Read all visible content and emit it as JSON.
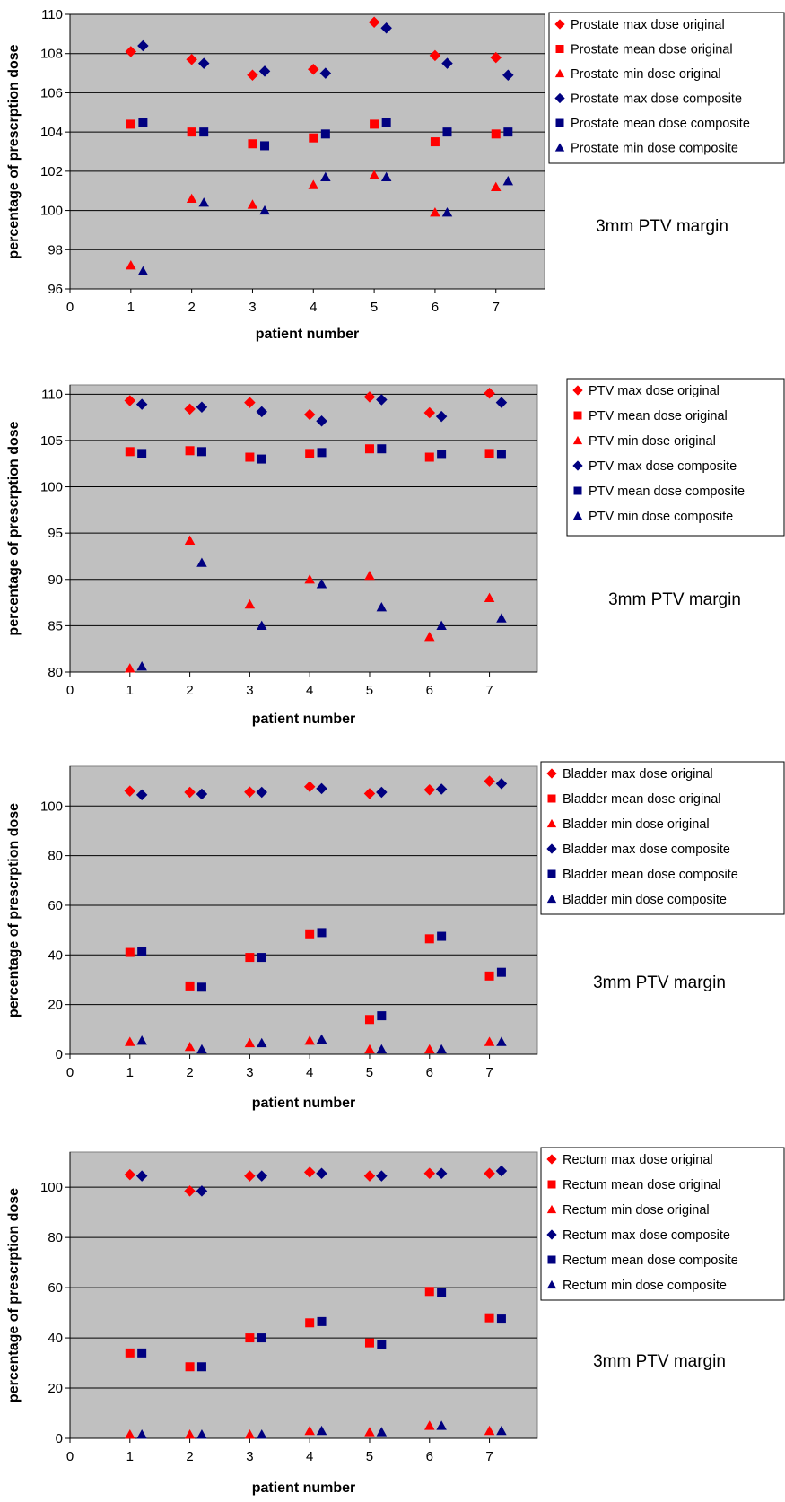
{
  "colors": {
    "original": "#ff0000",
    "composite": "#000080",
    "plot_bg": "#c0c0c0",
    "grid": "#000000"
  },
  "chart_data": [
    {
      "type": "scatter",
      "title": "",
      "xlabel": "patient number",
      "ylabel": "percentage of prescrption dose",
      "xlim": [
        0,
        7.8
      ],
      "xticks": [
        0,
        1,
        2,
        3,
        4,
        5,
        6,
        7
      ],
      "ylim": [
        96,
        110
      ],
      "yticks": [
        96,
        98,
        100,
        102,
        104,
        106,
        108,
        110
      ],
      "grid": true,
      "legend_position": "right",
      "annotation": "3mm PTV margin",
      "series": [
        {
          "name": "Prostate max dose original",
          "marker": "diamond",
          "color": "#ff0000",
          "x": [
            1,
            2,
            3,
            4,
            5,
            6,
            7
          ],
          "y": [
            108.1,
            107.7,
            106.9,
            107.2,
            109.6,
            107.9,
            107.8
          ]
        },
        {
          "name": "Prostate mean dose original",
          "marker": "square",
          "color": "#ff0000",
          "x": [
            1,
            2,
            3,
            4,
            5,
            6,
            7
          ],
          "y": [
            104.4,
            104.0,
            103.4,
            103.7,
            104.4,
            103.5,
            103.9
          ]
        },
        {
          "name": "Prostate min dose original",
          "marker": "triangle",
          "color": "#ff0000",
          "x": [
            1,
            2,
            3,
            4,
            5,
            6,
            7
          ],
          "y": [
            97.2,
            100.6,
            100.3,
            101.3,
            101.8,
            99.9,
            101.2
          ]
        },
        {
          "name": "Prostate max dose composite",
          "marker": "diamond",
          "color": "#000080",
          "x": [
            1.2,
            2.2,
            3.2,
            4.2,
            5.2,
            6.2,
            7.2
          ],
          "y": [
            108.4,
            107.5,
            107.1,
            107.0,
            109.3,
            107.5,
            106.9
          ]
        },
        {
          "name": "Prostate mean dose composite",
          "marker": "square",
          "color": "#000080",
          "x": [
            1.2,
            2.2,
            3.2,
            4.2,
            5.2,
            6.2,
            7.2
          ],
          "y": [
            104.5,
            104.0,
            103.3,
            103.9,
            104.5,
            104.0,
            104.0
          ]
        },
        {
          "name": "Prostate min dose composite",
          "marker": "triangle",
          "color": "#000080",
          "x": [
            1.2,
            2.2,
            3.2,
            4.2,
            5.2,
            6.2,
            7.2
          ],
          "y": [
            96.9,
            100.4,
            100.0,
            101.7,
            101.7,
            99.9,
            101.5
          ]
        }
      ]
    },
    {
      "type": "scatter",
      "title": "",
      "xlabel": "patient number",
      "ylabel": "percentage of prescrption dose",
      "xlim": [
        0,
        7.8
      ],
      "xticks": [
        0,
        1,
        2,
        3,
        4,
        5,
        6,
        7
      ],
      "ylim": [
        80,
        111
      ],
      "yticks": [
        80,
        85,
        90,
        95,
        100,
        105,
        110
      ],
      "grid": true,
      "legend_position": "right",
      "annotation": "3mm PTV margin",
      "series": [
        {
          "name": "PTV max dose original",
          "marker": "diamond",
          "color": "#ff0000",
          "x": [
            1,
            2,
            3,
            4,
            5,
            6,
            7
          ],
          "y": [
            109.3,
            108.4,
            109.1,
            107.8,
            109.7,
            108.0,
            110.1
          ]
        },
        {
          "name": "PTV mean dose original",
          "marker": "square",
          "color": "#ff0000",
          "x": [
            1,
            2,
            3,
            4,
            5,
            6,
            7
          ],
          "y": [
            103.8,
            103.9,
            103.2,
            103.6,
            104.1,
            103.2,
            103.6
          ]
        },
        {
          "name": "PTV min dose original",
          "marker": "triangle",
          "color": "#ff0000",
          "x": [
            1,
            2,
            3,
            4,
            5,
            6,
            7
          ],
          "y": [
            80.4,
            94.2,
            87.3,
            90.0,
            90.4,
            83.8,
            88.0
          ]
        },
        {
          "name": "PTV max dose composite",
          "marker": "diamond",
          "color": "#000080",
          "x": [
            1.2,
            2.2,
            3.2,
            4.2,
            5.2,
            6.2,
            7.2
          ],
          "y": [
            108.9,
            108.6,
            108.1,
            107.1,
            109.4,
            107.6,
            109.1
          ]
        },
        {
          "name": "PTV mean dose composite",
          "marker": "square",
          "color": "#000080",
          "x": [
            1.2,
            2.2,
            3.2,
            4.2,
            5.2,
            6.2,
            7.2
          ],
          "y": [
            103.6,
            103.8,
            103.0,
            103.7,
            104.1,
            103.5,
            103.5
          ]
        },
        {
          "name": "PTV min dose composite",
          "marker": "triangle",
          "color": "#000080",
          "x": [
            1.2,
            2.2,
            3.2,
            4.2,
            5.2,
            6.2,
            7.2
          ],
          "y": [
            80.6,
            91.8,
            85.0,
            89.5,
            87.0,
            85.0,
            85.8
          ]
        }
      ]
    },
    {
      "type": "scatter",
      "title": "",
      "xlabel": "patient number",
      "ylabel": "percentage of prescrption dose",
      "xlim": [
        0,
        7.8
      ],
      "xticks": [
        0,
        1,
        2,
        3,
        4,
        5,
        6,
        7
      ],
      "ylim": [
        0,
        116
      ],
      "yticks": [
        0,
        20,
        40,
        60,
        80,
        100
      ],
      "grid": true,
      "legend_position": "right",
      "annotation": "3mm PTV margin",
      "series": [
        {
          "name": "Bladder max dose original",
          "marker": "diamond",
          "color": "#ff0000",
          "x": [
            1,
            2,
            3,
            4,
            5,
            6,
            7
          ],
          "y": [
            106.0,
            105.5,
            105.6,
            107.8,
            105.0,
            106.5,
            110.0
          ]
        },
        {
          "name": "Bladder mean dose original",
          "marker": "square",
          "color": "#ff0000",
          "x": [
            1,
            2,
            3,
            4,
            5,
            6,
            7
          ],
          "y": [
            41.0,
            27.5,
            39.0,
            48.5,
            14.0,
            46.5,
            31.5
          ]
        },
        {
          "name": "Bladder min dose original",
          "marker": "triangle",
          "color": "#ff0000",
          "x": [
            1,
            2,
            3,
            4,
            5,
            6,
            7
          ],
          "y": [
            5.0,
            3.0,
            4.5,
            5.5,
            2.0,
            2.0,
            5.0
          ]
        },
        {
          "name": "Bladder max dose composite",
          "marker": "diamond",
          "color": "#000080",
          "x": [
            1.2,
            2.2,
            3.2,
            4.2,
            5.2,
            6.2,
            7.2
          ],
          "y": [
            104.5,
            104.8,
            105.5,
            107.0,
            105.5,
            106.8,
            109.0
          ]
        },
        {
          "name": "Bladder mean dose composite",
          "marker": "square",
          "color": "#000080",
          "x": [
            1.2,
            2.2,
            3.2,
            4.2,
            5.2,
            6.2,
            7.2
          ],
          "y": [
            41.5,
            27.0,
            39.0,
            49.0,
            15.5,
            47.5,
            33.0
          ]
        },
        {
          "name": "Bladder min dose composite",
          "marker": "triangle",
          "color": "#000080",
          "x": [
            1.2,
            2.2,
            3.2,
            4.2,
            5.2,
            6.2,
            7.2
          ],
          "y": [
            5.5,
            2.0,
            4.5,
            6.0,
            2.0,
            2.0,
            5.0
          ]
        }
      ]
    },
    {
      "type": "scatter",
      "title": "",
      "xlabel": "patient number",
      "ylabel": "percentage of prescrption dose",
      "xlim": [
        0,
        7.8
      ],
      "xticks": [
        0,
        1,
        2,
        3,
        4,
        5,
        6,
        7
      ],
      "ylim": [
        0,
        114
      ],
      "yticks": [
        0,
        20,
        40,
        60,
        80,
        100
      ],
      "grid": true,
      "legend_position": "right",
      "annotation": "3mm PTV margin",
      "series": [
        {
          "name": "Rectum max dose original",
          "marker": "diamond",
          "color": "#ff0000",
          "x": [
            1,
            2,
            3,
            4,
            5,
            6,
            7
          ],
          "y": [
            105.0,
            98.5,
            104.5,
            106.0,
            104.5,
            105.5,
            105.5
          ]
        },
        {
          "name": "Rectum mean dose original",
          "marker": "square",
          "color": "#ff0000",
          "x": [
            1,
            2,
            3,
            4,
            5,
            6,
            7
          ],
          "y": [
            34.0,
            28.5,
            40.0,
            46.0,
            38.0,
            58.5,
            48.0
          ]
        },
        {
          "name": "Rectum min dose original",
          "marker": "triangle",
          "color": "#ff0000",
          "x": [
            1,
            2,
            3,
            4,
            5,
            6,
            7
          ],
          "y": [
            1.5,
            1.5,
            1.5,
            3.0,
            2.5,
            5.0,
            3.0
          ]
        },
        {
          "name": "Rectum max dose composite",
          "marker": "diamond",
          "color": "#000080",
          "x": [
            1.2,
            2.2,
            3.2,
            4.2,
            5.2,
            6.2,
            7.2
          ],
          "y": [
            104.5,
            98.5,
            104.5,
            105.5,
            104.5,
            105.5,
            106.5
          ]
        },
        {
          "name": "Rectum mean dose composite",
          "marker": "square",
          "color": "#000080",
          "x": [
            1.2,
            2.2,
            3.2,
            4.2,
            5.2,
            6.2,
            7.2
          ],
          "y": [
            34.0,
            28.5,
            40.0,
            46.5,
            37.5,
            58.0,
            47.5
          ]
        },
        {
          "name": "Rectum min dose composite",
          "marker": "triangle",
          "color": "#000080",
          "x": [
            1.2,
            2.2,
            3.2,
            4.2,
            5.2,
            6.2,
            7.2
          ],
          "y": [
            1.5,
            1.5,
            1.5,
            3.0,
            2.5,
            5.0,
            3.0
          ]
        }
      ]
    }
  ]
}
